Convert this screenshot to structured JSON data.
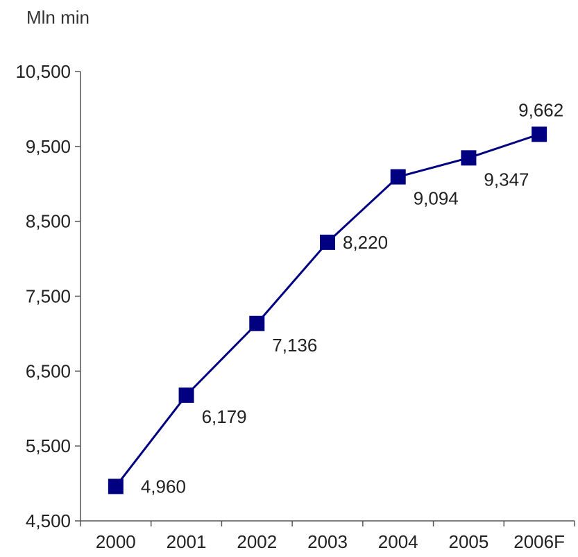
{
  "chart_data": {
    "type": "line",
    "ylabel": "Mln min",
    "categories": [
      "2000",
      "2001",
      "2002",
      "2003",
      "2004",
      "2005",
      "2006F"
    ],
    "series": [
      {
        "values": [
          4960,
          6179,
          7136,
          8220,
          9094,
          9347,
          9662
        ]
      }
    ],
    "data_labels": [
      "4,960",
      "6,179",
      "7,136",
      "8,220",
      "9,094",
      "9,347",
      "9,662"
    ],
    "ylim": [
      4500,
      10500
    ],
    "yticks": [
      4500,
      5500,
      6500,
      7500,
      8500,
      9500,
      10500
    ],
    "ytick_labels": [
      "4,500",
      "5,500",
      "6,500",
      "7,500",
      "8,500",
      "9,500",
      "10,500"
    ],
    "grid": false,
    "legend": "none",
    "colors": {
      "series": "#000080",
      "axis": "#555555",
      "text": "#222222"
    }
  }
}
